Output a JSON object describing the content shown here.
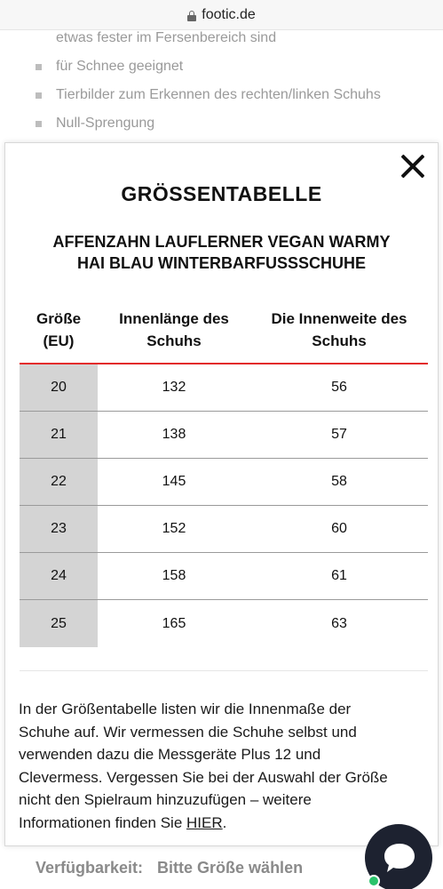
{
  "browser": {
    "url": "footic.de"
  },
  "background": {
    "partial_line": "etwas fester im Fersenbereich sind",
    "bullets": [
      "für Schnee geeignet",
      "Tierbilder zum Erkennen des rechten/linken Schuhs",
      "Null-Sprengung"
    ],
    "availability_label": "Verfügbarkeit:",
    "availability_value": "Bitte Größe wählen"
  },
  "modal": {
    "title": "GRÖSSENTABELLE",
    "subtitle_line1": "AFFENZAHN LAUFLERNER VEGAN WARMY",
    "subtitle_line2": "HAI BLAU WINTERBARFUSSSCHUHE",
    "columns": [
      {
        "line1": "Größe",
        "line2": "(EU)"
      },
      {
        "line1": "Innenlänge des",
        "line2": "Schuhs"
      },
      {
        "line1": "Die Innenweite des",
        "line2": "Schuhs"
      }
    ],
    "rows": [
      [
        "20",
        "132",
        "56"
      ],
      [
        "21",
        "138",
        "57"
      ],
      [
        "22",
        "145",
        "58"
      ],
      [
        "23",
        "152",
        "60"
      ],
      [
        "24",
        "158",
        "61"
      ],
      [
        "25",
        "165",
        "63"
      ]
    ],
    "description_lines": [
      "In der Größentabelle listen wir die Innenmaße der",
      "Schuhe auf. Wir vermessen die Schuhe selbst und",
      "verwenden dazu die Messgeräte Plus 12 und",
      "Clevermess. Vergessen Sie bei der Auswahl der Größe",
      "nicht den Spielraum hinzuzufügen – weitere"
    ],
    "description_last_prefix": "Informationen finden Sie ",
    "description_link": "HIER",
    "description_last_suffix": "."
  },
  "colors": {
    "accent_red": "#e32b2b",
    "size_col_bg": "#d4d4d4",
    "chat_bg": "#1d2230",
    "online_dot": "#29c36a"
  },
  "icons": {
    "close": "close-icon",
    "lock": "lock-icon",
    "chat": "chat-bubble-icon"
  }
}
